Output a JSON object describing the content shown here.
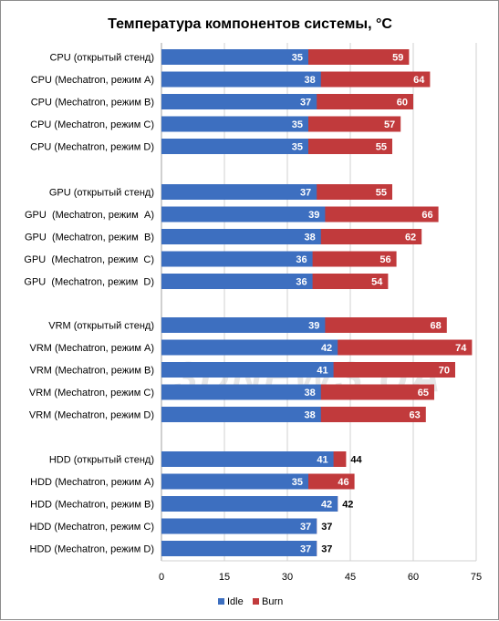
{
  "chart_data": {
    "type": "bar",
    "orientation": "horizontal",
    "stacking": "overlay",
    "title": "Температура компонентов системы, °C",
    "xlabel": "",
    "ylabel": "",
    "xlim": [
      0,
      75
    ],
    "xticks": [
      0,
      15,
      30,
      45,
      60,
      75
    ],
    "grid": "vertical",
    "legend_position": "bottom",
    "colors": {
      "Idle": "#3d6fc0",
      "Burn": "#c13a3c"
    },
    "groups": [
      {
        "categories": [
          "CPU (открытый стенд)",
          "CPU (Mechatron, режим A)",
          "CPU (Mechatron, режим B)",
          "CPU (Mechatron, режим C)",
          "CPU (Mechatron, режим D)"
        ],
        "idle": [
          35,
          38,
          37,
          35,
          35
        ],
        "burn": [
          59,
          64,
          60,
          57,
          55
        ]
      },
      {
        "categories": [
          "GPU (открытый стенд)",
          "GPU  (Mechatron, режим  A)",
          "GPU  (Mechatron, режим  B)",
          "GPU  (Mechatron, режим  C)",
          "GPU  (Mechatron, режим  D)"
        ],
        "idle": [
          37,
          39,
          38,
          36,
          36
        ],
        "burn": [
          55,
          66,
          62,
          56,
          54
        ]
      },
      {
        "categories": [
          "VRM (открытый стенд)",
          "VRM (Mechatron, режим A)",
          "VRM (Mechatron, режим B)",
          "VRM (Mechatron, режим C)",
          "VRM (Mechatron, режим D)"
        ],
        "idle": [
          39,
          42,
          41,
          38,
          38
        ],
        "burn": [
          68,
          74,
          70,
          65,
          63
        ]
      },
      {
        "categories": [
          "HDD (открытый стенд)",
          "HDD (Mechatron, режим A)",
          "HDD (Mechatron, режим B)",
          "HDD (Mechatron, режим C)",
          "HDD (Mechatron, режим D)"
        ],
        "idle": [
          41,
          35,
          42,
          37,
          37
        ],
        "burn": [
          44,
          46,
          42,
          37,
          37
        ]
      }
    ],
    "series": [
      {
        "name": "Idle"
      },
      {
        "name": "Burn"
      }
    ]
  },
  "watermark": "3DNEWS.UA"
}
